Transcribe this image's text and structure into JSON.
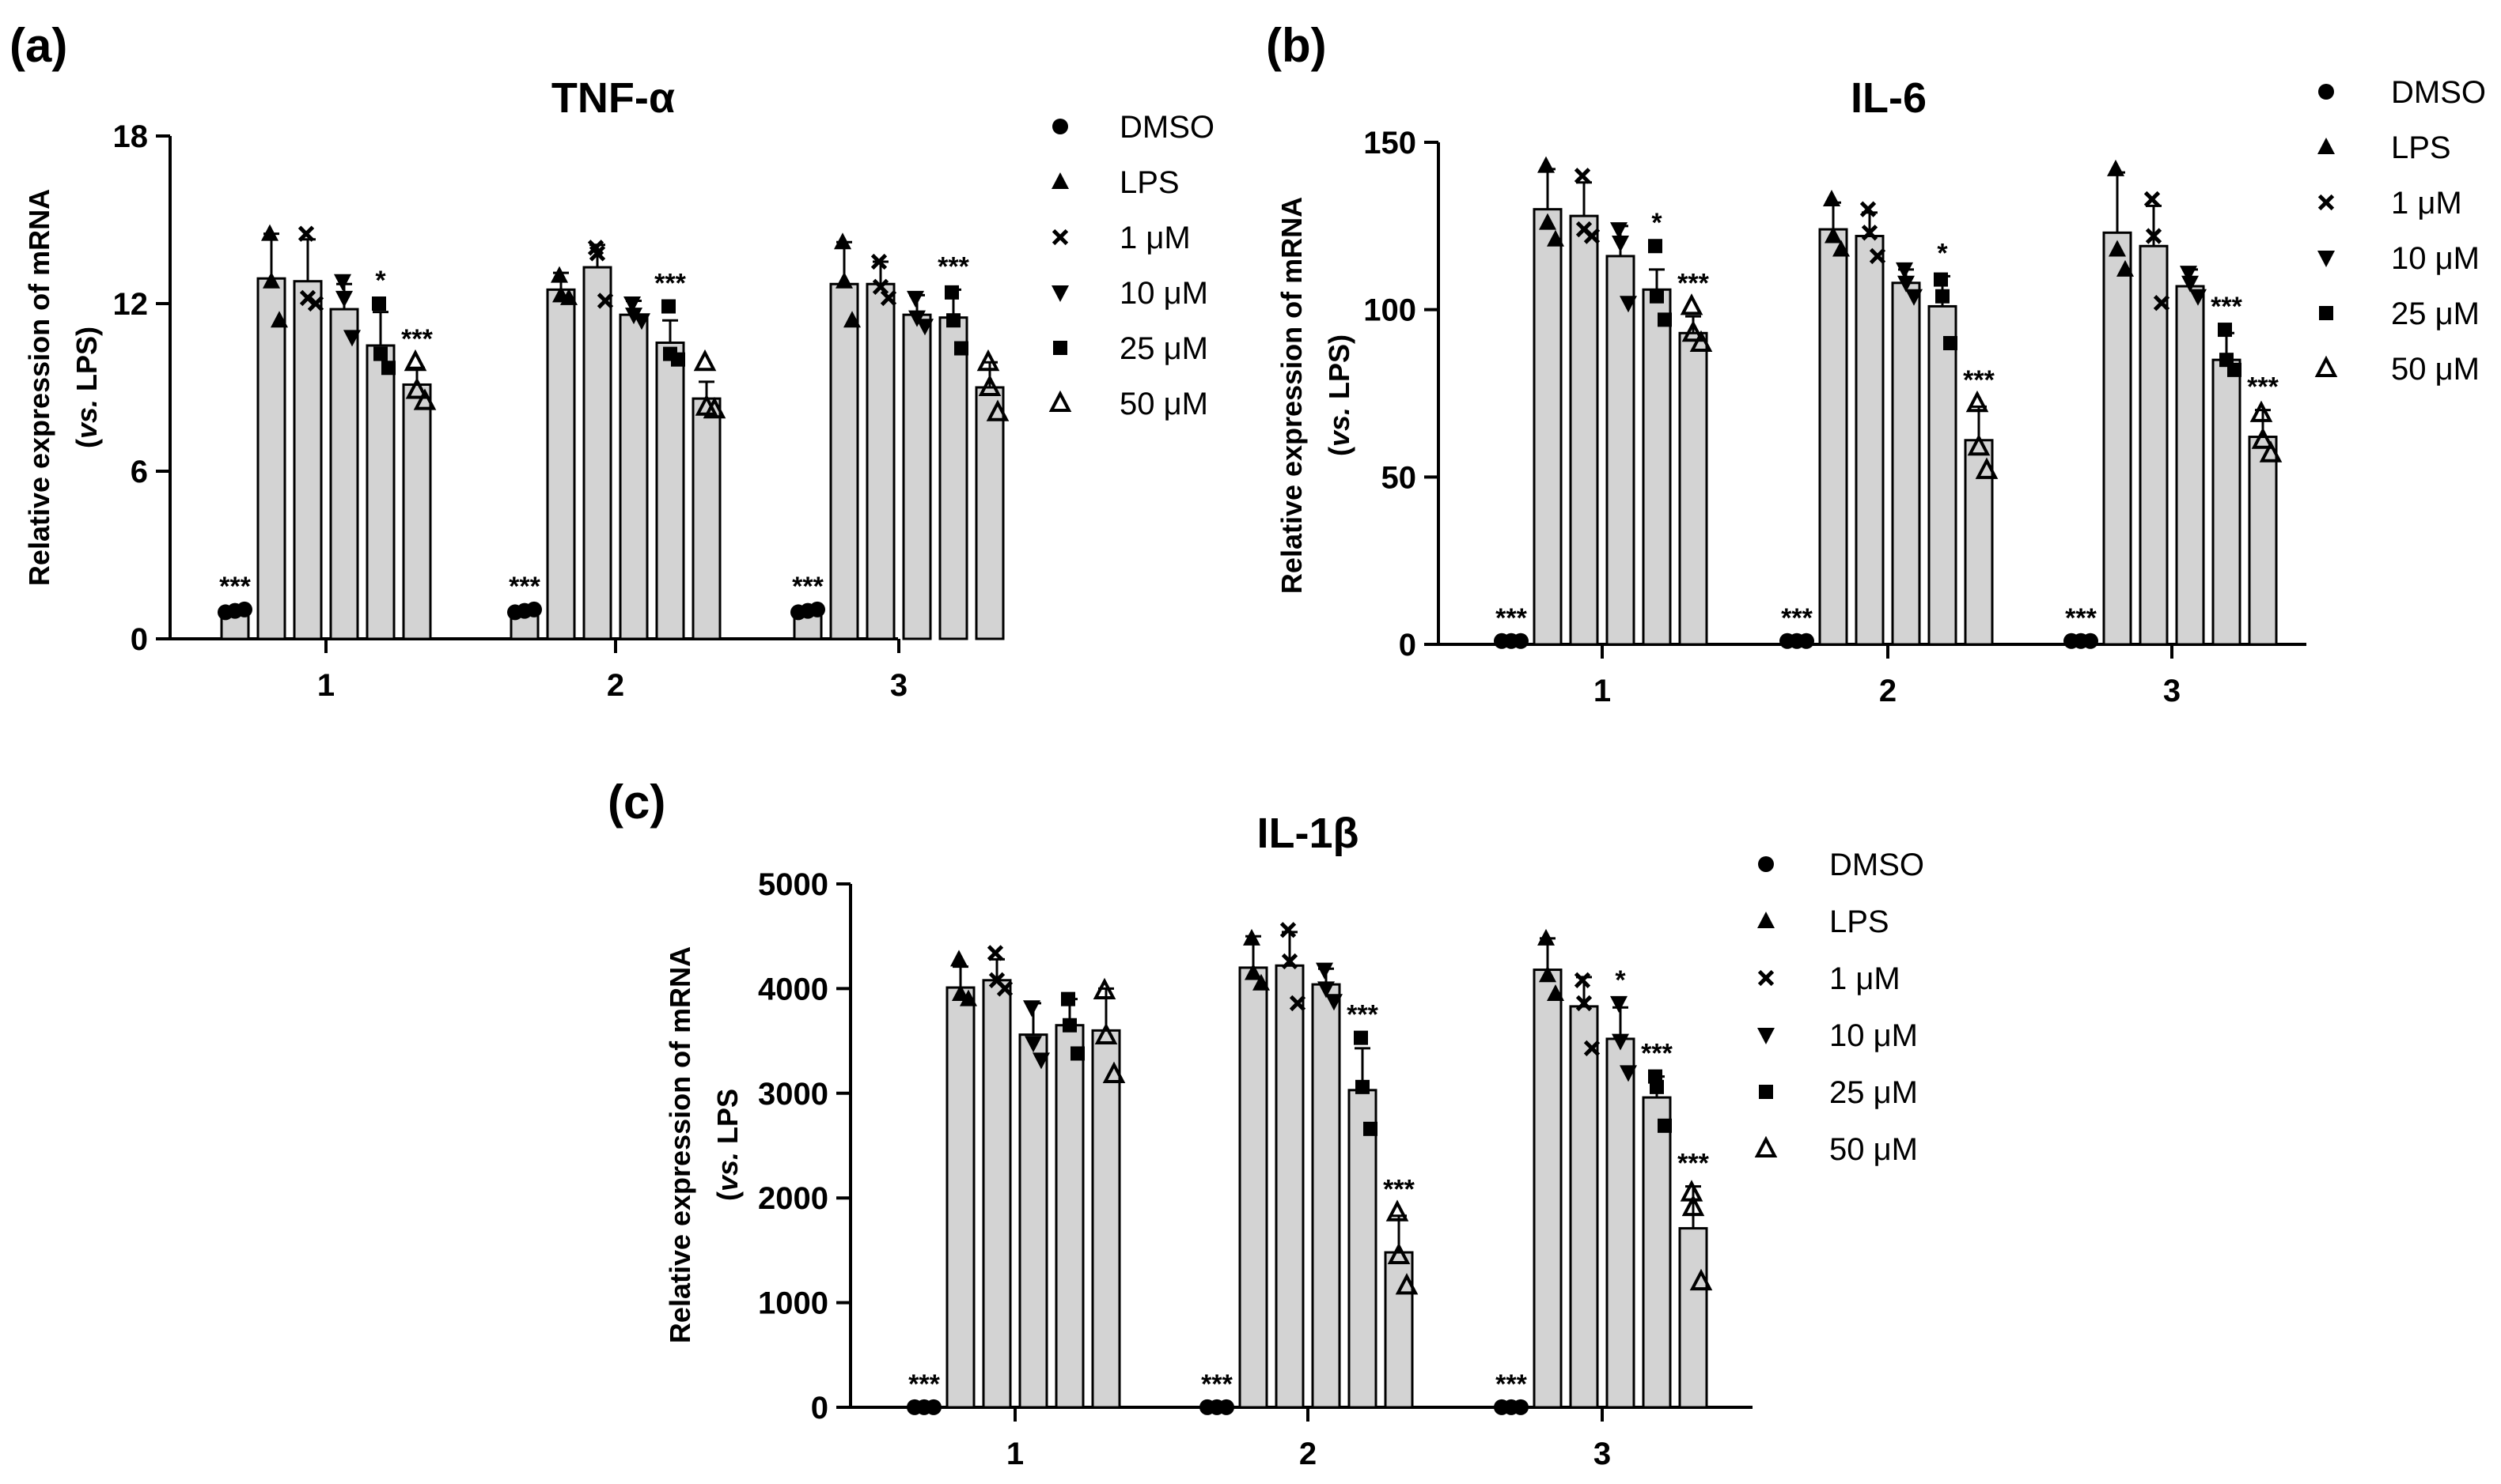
{
  "colors": {
    "bar_fill": "#d3d3d3",
    "stroke": "#000000",
    "background": "#ffffff"
  },
  "chart_data": [
    {
      "type": "bar",
      "panel_label": "(a)",
      "title": "TNF-α",
      "ylabel": "Relative expression of mRNA",
      "ylabel_line2_italic": "vs.",
      "ylabel_line2_rest": " LPS)",
      "ylabel_line2_open": "(",
      "ylim": [
        0,
        18
      ],
      "yticks": [
        0,
        6,
        12,
        18
      ],
      "ytick_labels": [
        "0",
        "6",
        "12",
        "18"
      ],
      "categories": [
        "1",
        "2",
        "3"
      ],
      "legend_position": "right",
      "series": [
        {
          "name": "DMSO",
          "marker": "circle",
          "values": [
            1.0,
            1.0,
            1.0
          ],
          "errors": [
            0.05,
            0.05,
            0.05
          ],
          "points": [
            [
              0.95,
              1.0,
              1.05
            ],
            [
              0.95,
              1.0,
              1.05
            ],
            [
              0.95,
              1.0,
              1.05
            ]
          ],
          "stars": [
            "***",
            "***",
            "***"
          ]
        },
        {
          "name": "LPS",
          "marker": "triangle",
          "values": [
            12.9,
            12.5,
            12.7
          ],
          "errors": [
            1.6,
            0.6,
            1.5
          ],
          "points": [
            [
              14.5,
              12.8,
              11.4
            ],
            [
              13.0,
              12.3,
              12.2
            ],
            [
              14.2,
              12.8,
              11.4
            ]
          ],
          "stars": [
            "",
            "",
            ""
          ]
        },
        {
          "name": "1 μM",
          "marker": "x",
          "values": [
            12.8,
            13.3,
            12.7
          ],
          "errors": [
            1.5,
            0.8,
            0.8
          ],
          "points": [
            [
              14.5,
              12.2,
              12.0
            ],
            [
              14.0,
              13.8,
              12.1
            ],
            [
              13.5,
              12.6,
              12.2
            ]
          ],
          "stars": [
            "",
            "",
            ""
          ]
        },
        {
          "name": "10 μM",
          "marker": "tri-down",
          "values": [
            11.8,
            11.6,
            11.6
          ],
          "errors": [
            0.9,
            0.5,
            0.7
          ],
          "points": [
            [
              12.8,
              12.2,
              10.8
            ],
            [
              12.0,
              11.6,
              11.4
            ],
            [
              12.2,
              11.5,
              11.2
            ]
          ],
          "stars": [
            "",
            "",
            ""
          ]
        },
        {
          "name": "25 μM",
          "marker": "square",
          "values": [
            10.5,
            10.6,
            11.5
          ],
          "errors": [
            1.2,
            0.8,
            1.0
          ],
          "points": [
            [
              12.0,
              10.2,
              9.7
            ],
            [
              11.9,
              10.2,
              10.0
            ],
            [
              12.4,
              11.4,
              10.4
            ]
          ],
          "stars": [
            "*",
            "***",
            "***"
          ]
        },
        {
          "name": "50 μM",
          "marker": "triangle-open",
          "values": [
            9.1,
            8.6,
            9.0
          ],
          "errors": [
            0.6,
            0.6,
            0.9
          ],
          "points": [
            [
              9.9,
              8.9,
              8.5
            ],
            [
              9.9,
              8.3,
              8.2
            ],
            [
              9.9,
              9.0,
              8.1
            ]
          ],
          "stars": [
            "***",
            "",
            ""
          ]
        }
      ]
    },
    {
      "type": "bar",
      "panel_label": "(b)",
      "title": "IL-6",
      "ylabel": "Relative expression of mRNA",
      "ylabel_line2_italic": "vs.",
      "ylabel_line2_rest": " LPS)",
      "ylabel_line2_open": "(",
      "ylim": [
        0,
        150
      ],
      "yticks": [
        0,
        50,
        100,
        150
      ],
      "ytick_labels": [
        "0",
        "50",
        "100",
        "150"
      ],
      "categories": [
        "1",
        "2",
        "3"
      ],
      "legend_position": "right",
      "series": [
        {
          "name": "DMSO",
          "marker": "circle",
          "values": [
            1,
            1,
            1
          ],
          "errors": [
            0.5,
            0.5,
            0.5
          ],
          "points": [
            [
              1,
              1,
              1
            ],
            [
              1,
              1,
              1
            ],
            [
              1,
              1,
              1
            ]
          ],
          "stars": [
            "***",
            "***",
            "***"
          ]
        },
        {
          "name": "LPS",
          "marker": "triangle",
          "values": [
            130,
            124,
            123
          ],
          "errors": [
            12,
            8,
            18
          ],
          "points": [
            [
              143,
              126,
              121
            ],
            [
              133,
              122,
              118
            ],
            [
              142,
              118,
              112
            ]
          ],
          "stars": [
            "",
            "",
            ""
          ]
        },
        {
          "name": "1 μM",
          "marker": "x",
          "values": [
            128,
            122,
            119
          ],
          "errors": [
            10,
            7,
            12
          ],
          "points": [
            [
              140,
              124,
              122
            ],
            [
              130,
              123,
              116
            ],
            [
              133,
              122,
              102
            ]
          ],
          "stars": [
            "",
            "",
            ""
          ]
        },
        {
          "name": "10 μM",
          "marker": "tri-down",
          "values": [
            116,
            108,
            107
          ],
          "errors": [
            9,
            4,
            5
          ],
          "points": [
            [
              124,
              120,
              102
            ],
            [
              112,
              108,
              104
            ],
            [
              111,
              108,
              104
            ]
          ],
          "stars": [
            "",
            "",
            ""
          ]
        },
        {
          "name": "25 μM",
          "marker": "square",
          "values": [
            106,
            101,
            85
          ],
          "errors": [
            6,
            9,
            8
          ],
          "points": [
            [
              119,
              104,
              97
            ],
            [
              109,
              104,
              90
            ],
            [
              94,
              85,
              82
            ]
          ],
          "stars": [
            "*",
            "*",
            "***"
          ]
        },
        {
          "name": "50 μM",
          "marker": "triangle-open",
          "values": [
            93,
            61,
            62
          ],
          "errors": [
            5,
            10,
            8
          ],
          "points": [
            [
              101,
              93,
              90
            ],
            [
              72,
              59,
              52
            ],
            [
              69,
              61,
              57
            ]
          ],
          "stars": [
            "***",
            "***",
            "***"
          ]
        }
      ]
    },
    {
      "type": "bar",
      "panel_label": "(c)",
      "title": "IL-1β",
      "ylabel": "Relative expression of mRNA",
      "ylabel_line2_italic": "vs.",
      "ylabel_line2_rest": " LPS",
      "ylabel_line2_open": "(",
      "ylim": [
        0,
        5000
      ],
      "yticks": [
        0,
        1000,
        2000,
        3000,
        4000,
        5000
      ],
      "ytick_labels": [
        "0",
        "1000",
        "2000",
        "3000",
        "4000",
        "5000"
      ],
      "categories": [
        "1",
        "2",
        "3"
      ],
      "legend_position": "right",
      "series": [
        {
          "name": "DMSO",
          "marker": "circle",
          "values": [
            1,
            1,
            1
          ],
          "errors": [
            1,
            1,
            1
          ],
          "points": [
            [
              1,
              1,
              1
            ],
            [
              1,
              1,
              1
            ],
            [
              1,
              1,
              1
            ]
          ],
          "stars": [
            "***",
            "***",
            "***"
          ]
        },
        {
          "name": "LPS",
          "marker": "triangle",
          "values": [
            4010,
            4200,
            4180
          ],
          "errors": [
            200,
            300,
            300
          ],
          "points": [
            [
              4280,
              3950,
              3900
            ],
            [
              4480,
              4150,
              4050
            ],
            [
              4480,
              4130,
              3950
            ]
          ],
          "stars": [
            "",
            "",
            ""
          ]
        },
        {
          "name": "1 μM",
          "marker": "x",
          "values": [
            4080,
            4220,
            3830
          ],
          "errors": [
            200,
            320,
            280
          ],
          "points": [
            [
              4340,
              4080,
              4000
            ],
            [
              4560,
              4260,
              3860
            ],
            [
              4080,
              3860,
              3430
            ]
          ],
          "stars": [
            "",
            "",
            ""
          ]
        },
        {
          "name": "10 μM",
          "marker": "tri-down",
          "values": [
            3560,
            4040,
            3520
          ],
          "errors": [
            300,
            150,
            300
          ],
          "points": [
            [
              3820,
              3480,
              3320
            ],
            [
              4180,
              4000,
              3880
            ],
            [
              3860,
              3500,
              3200
            ]
          ],
          "stars": [
            "",
            "",
            "*"
          ]
        },
        {
          "name": "25 μM",
          "marker": "square",
          "values": [
            3650,
            3030,
            2960
          ],
          "errors": [
            250,
            400,
            200
          ],
          "points": [
            [
              3900,
              3650,
              3380
            ],
            [
              3530,
              3060,
              2660
            ],
            [
              3160,
              3060,
              2690
            ]
          ],
          "stars": [
            "",
            "***",
            "***"
          ]
        },
        {
          "name": "50 μM",
          "marker": "triangle-open",
          "values": [
            3600,
            1480,
            1710
          ],
          "errors": [
            400,
            350,
            400
          ],
          "points": [
            [
              3980,
              3550,
              3180
            ],
            [
              1860,
              1450,
              1160
            ],
            [
              2050,
              1910,
              1200
            ]
          ],
          "stars": [
            "",
            "***",
            "***"
          ]
        }
      ]
    }
  ]
}
